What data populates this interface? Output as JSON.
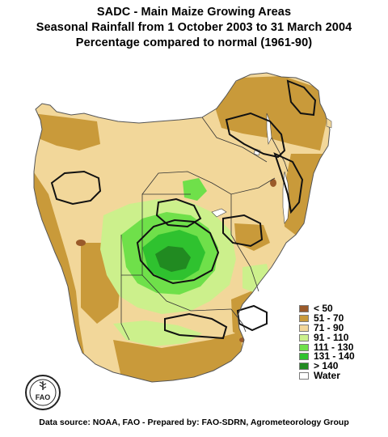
{
  "title": {
    "line1": "SADC - Main Maize Growing Areas",
    "line2": "Seasonal Rainfall from 1 October 2003 to 31 March 2004",
    "line3": "Percentage compared to normal (1961-90)"
  },
  "legend": {
    "items": [
      {
        "label": "< 50",
        "color": "#9a5a2a"
      },
      {
        "label": "51 - 70",
        "color": "#c99a3a"
      },
      {
        "label": "71 - 90",
        "color": "#f2d79a"
      },
      {
        "label": "91 - 110",
        "color": "#ccf08c"
      },
      {
        "label": "111 - 130",
        "color": "#6fe04a"
      },
      {
        "label": "131 - 140",
        "color": "#2fc22f"
      },
      {
        "label": "> 140",
        "color": "#218a21"
      },
      {
        "label": "Water",
        "color": "#ffffff"
      }
    ]
  },
  "logo": {
    "text": "FAO"
  },
  "source": "Data source: NOAA, FAO - Prepared by: FAO-SDRN,  Agrometeorology Group"
}
